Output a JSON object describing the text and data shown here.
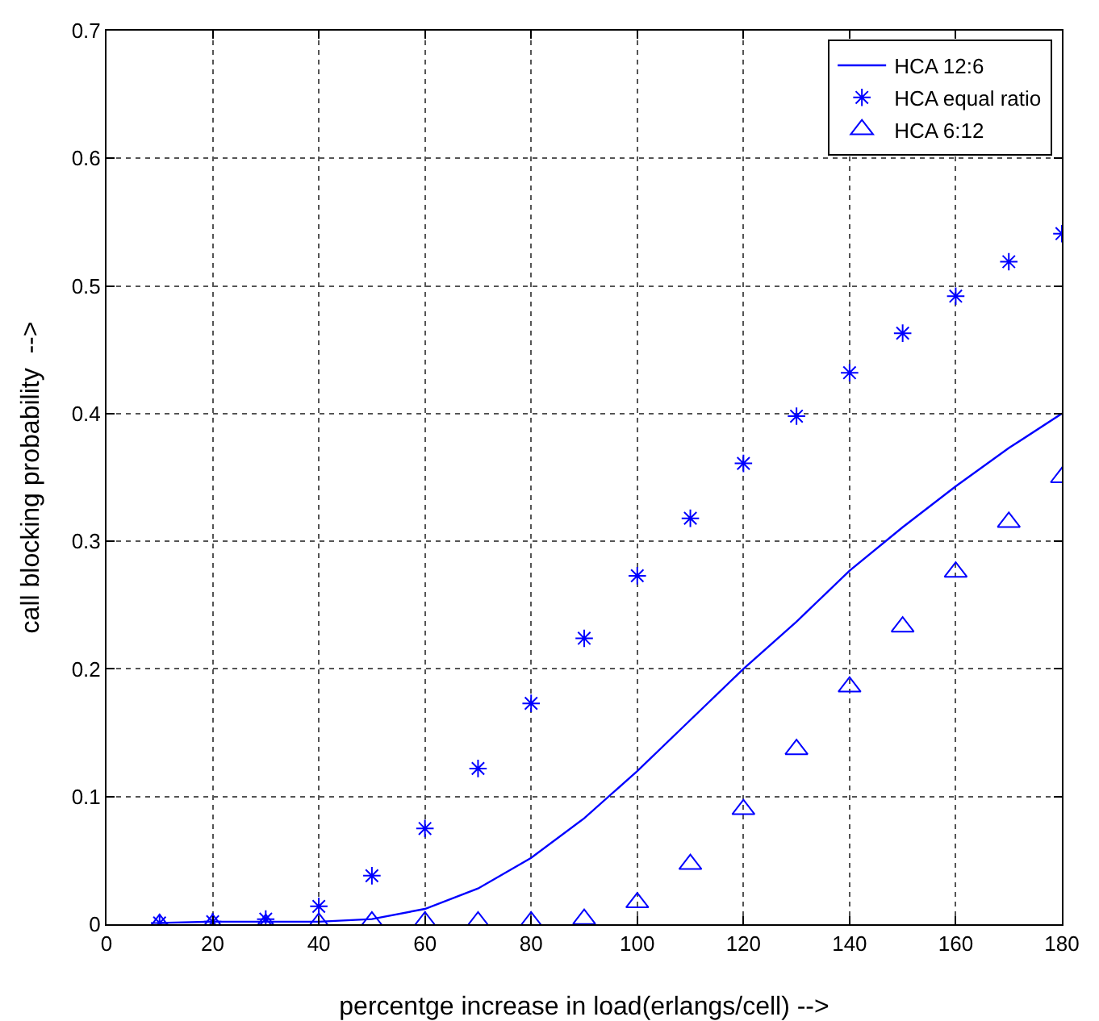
{
  "chart_data": {
    "type": "line",
    "xlabel": "percentge increase in load(erlangs/cell) -->",
    "ylabel": "call blocking probability  -->",
    "x": [
      10,
      20,
      30,
      40,
      50,
      60,
      70,
      80,
      90,
      100,
      110,
      120,
      130,
      140,
      150,
      160,
      170,
      180
    ],
    "xlim": [
      0,
      180
    ],
    "xticks": [
      0,
      20,
      40,
      60,
      80,
      100,
      120,
      140,
      160,
      180
    ],
    "ylim": [
      0,
      0.7
    ],
    "yticks": [
      0,
      0.1,
      0.2,
      0.3,
      0.4,
      0.5,
      0.6,
      0.7
    ],
    "grid": true,
    "legend": "top right",
    "series": [
      {
        "name": "HCA 12:6",
        "color": "#0000ff",
        "marker": "none",
        "line_style": "solid",
        "values": [
          0.001,
          0.002,
          0.002,
          0.002,
          0.004,
          0.012,
          0.028,
          0.052,
          0.083,
          0.12,
          0.16,
          0.2,
          0.237,
          0.277,
          0.311,
          0.343,
          0.373,
          0.4
        ]
      },
      {
        "name": "HCA equal ratio",
        "type": "scatter",
        "color": "#0000ff",
        "marker": "cross",
        "values": [
          0.001,
          0.002,
          0.004,
          0.014,
          0.038,
          0.075,
          0.122,
          0.173,
          0.224,
          0.273,
          0.318,
          0.361,
          0.398,
          0.432,
          0.463,
          0.492,
          0.519,
          0.541
        ]
      },
      {
        "name": "HCA 6:12",
        "type": "scatter",
        "color": "#0000ff",
        "marker": "triangle",
        "values": [
          0,
          0,
          0,
          0.001,
          0.002,
          0.002,
          0.002,
          0.002,
          0.004,
          0.017,
          0.047,
          0.09,
          0.137,
          0.186,
          0.233,
          0.276,
          0.315,
          0.35
        ]
      }
    ]
  }
}
